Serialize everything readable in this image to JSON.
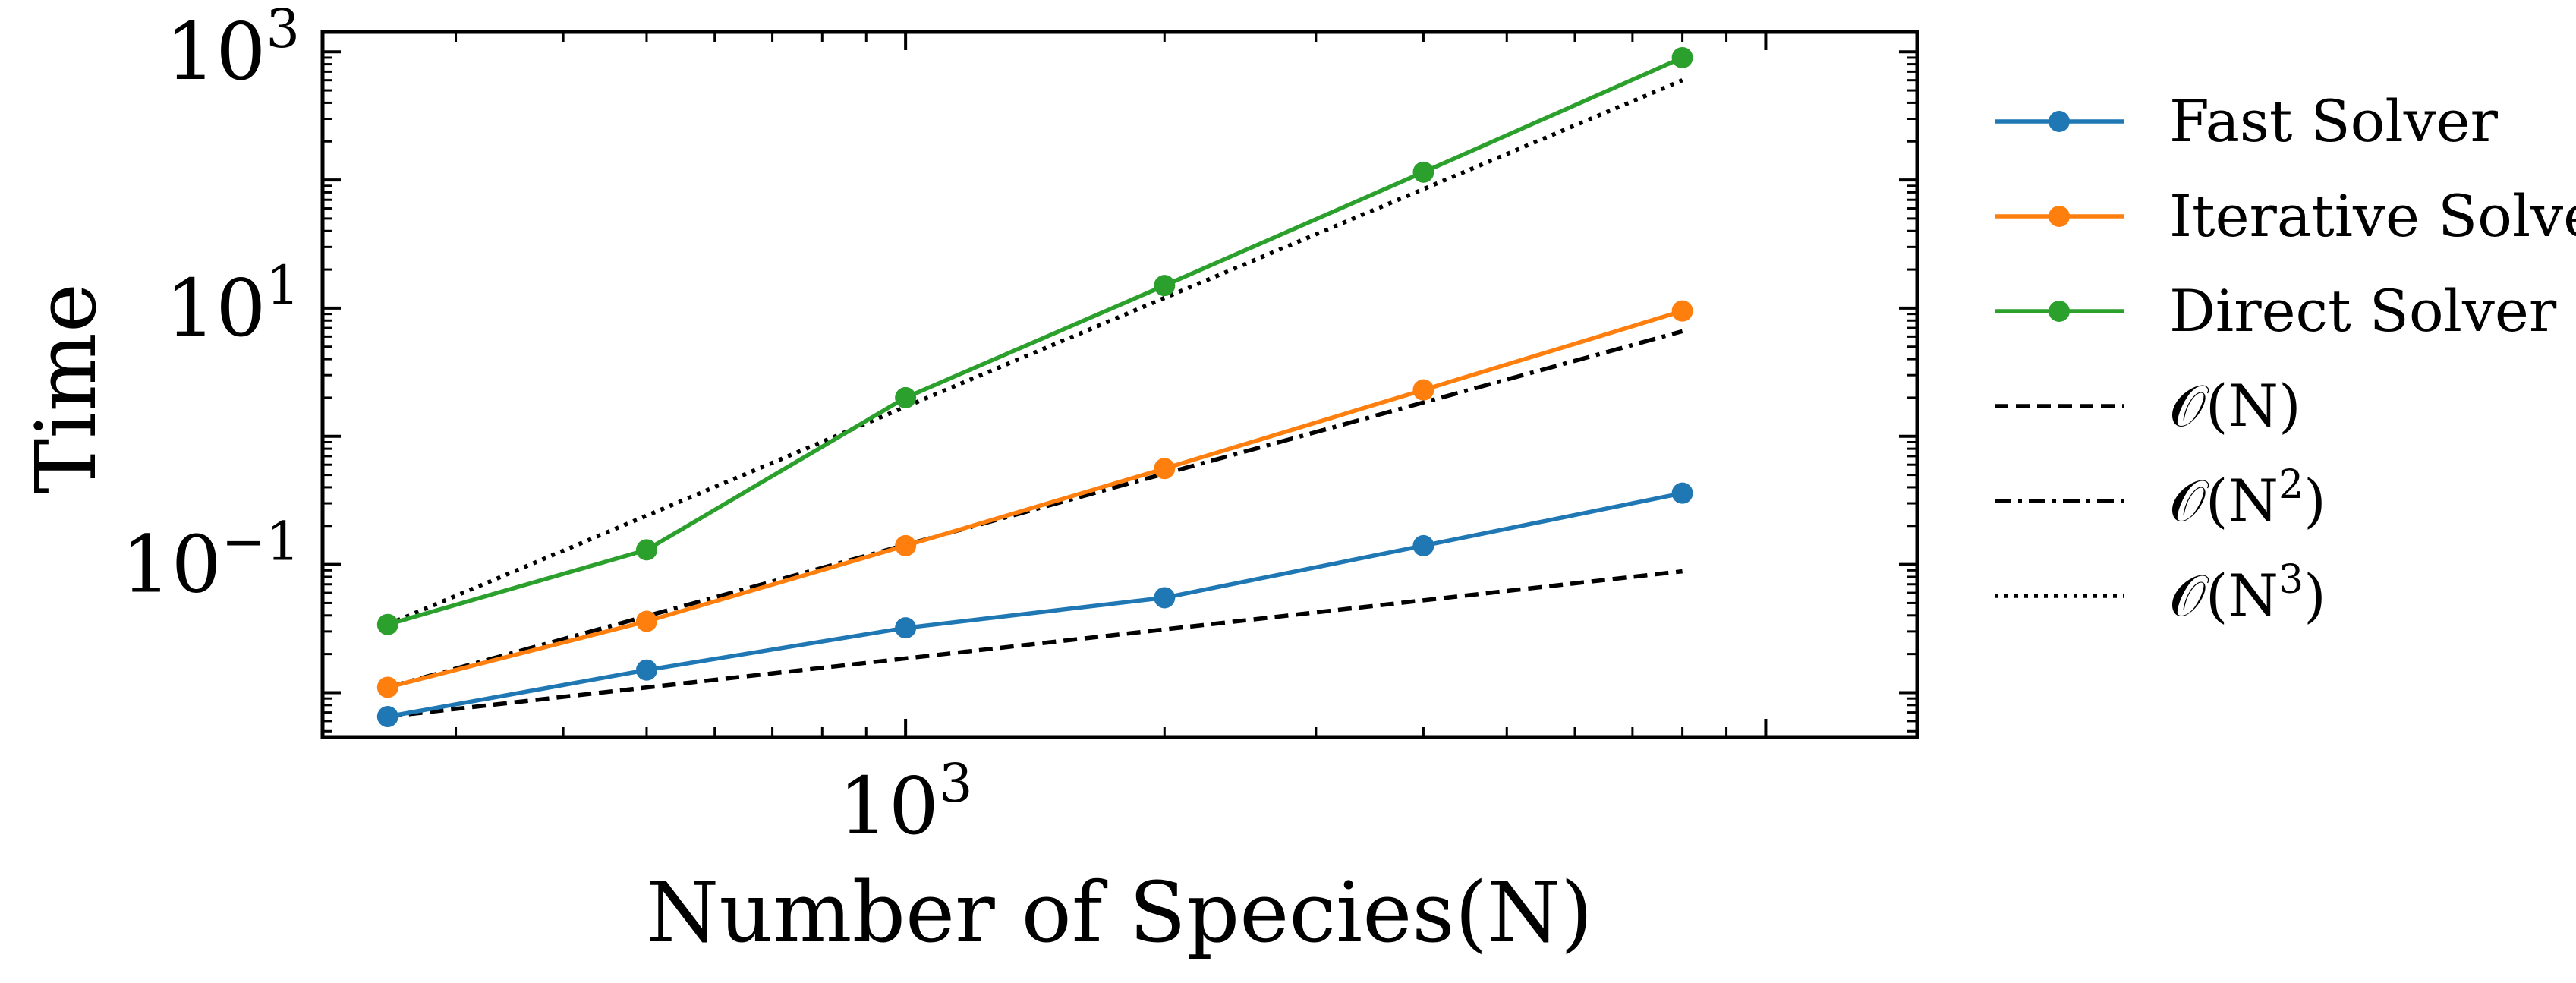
{
  "chart_data": {
    "type": "line",
    "xlabel": "Number of Species(N)",
    "ylabel": "Time",
    "xscale": "log",
    "yscale": "log",
    "xlim": [
      210,
      15000
    ],
    "ylim": [
      0.0045,
      1430
    ],
    "x_ticks": [
      {
        "value": 1000,
        "base": "10",
        "exp": "3"
      }
    ],
    "y_ticks": [
      {
        "value": 0.1,
        "base": "10",
        "exp": "−1"
      },
      {
        "value": 10,
        "base": "10",
        "exp": "1"
      },
      {
        "value": 1000,
        "base": "10",
        "exp": "3"
      }
    ],
    "grid": false,
    "legend_position": "outside-right",
    "series": [
      {
        "name": "Fast Solver",
        "color": "#1f77b4",
        "style": "solid-marker",
        "x": [
          250,
          500,
          1000,
          2000,
          4000,
          8000
        ],
        "y": [
          0.0065,
          0.015,
          0.032,
          0.055,
          0.14,
          0.36
        ]
      },
      {
        "name": "Iterative Solver",
        "color": "#ff7f0e",
        "style": "solid-marker",
        "x": [
          250,
          500,
          1000,
          2000,
          4000,
          8000
        ],
        "y": [
          0.011,
          0.036,
          0.14,
          0.56,
          2.3,
          9.5
        ]
      },
      {
        "name": "Direct Solver",
        "color": "#2ca02c",
        "style": "solid-marker",
        "x": [
          250,
          500,
          1000,
          2000,
          4000,
          8000
        ],
        "y": [
          0.034,
          0.13,
          2.0,
          15,
          115,
          900
        ]
      },
      {
        "name": "O(N)",
        "label_main": "𝒪(N)",
        "label_sup": "",
        "label_close": "",
        "color": "#000000",
        "style": "dashed",
        "x": [
          250,
          8000
        ],
        "y": [
          0.0065,
          0.0885
        ]
      },
      {
        "name": "O(N^2)",
        "label_main": "𝒪(N",
        "label_sup": "2",
        "label_close": ")",
        "color": "#000000",
        "style": "dashdot",
        "x": [
          250,
          8000
        ],
        "y": [
          0.011,
          6.6
        ]
      },
      {
        "name": "O(N^3)",
        "label_main": "𝒪(N",
        "label_sup": "3",
        "label_close": ")",
        "color": "#000000",
        "style": "dotted",
        "x": [
          250,
          8000
        ],
        "y": [
          0.034,
          600
        ]
      }
    ]
  }
}
